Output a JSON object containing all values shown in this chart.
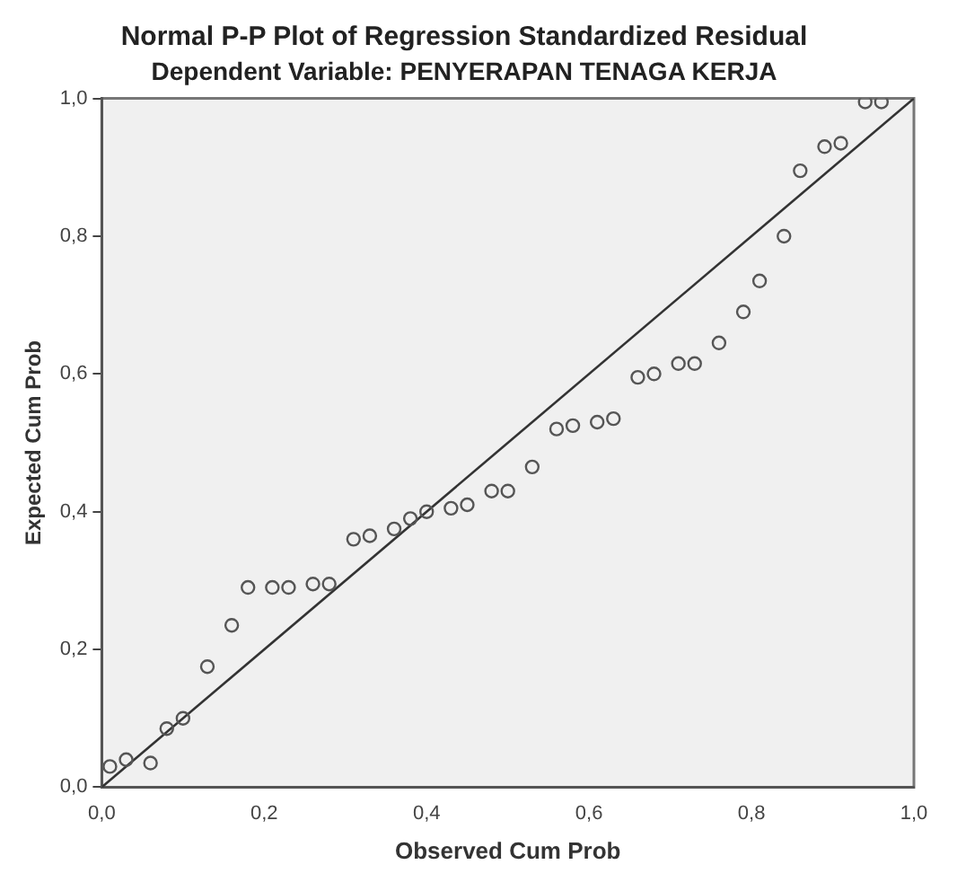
{
  "chart_data": {
    "type": "scatter",
    "title": "Normal P-P Plot of Regression Standardized Residual",
    "subtitle": "Dependent Variable: PENYERAPAN TENAGA KERJA",
    "xlabel": "Observed Cum Prob",
    "ylabel": "Expected Cum Prob",
    "xlim": [
      0,
      1
    ],
    "ylim": [
      0,
      1
    ],
    "xticks": [
      {
        "value": 0,
        "label": "0,0"
      },
      {
        "value": 0.2,
        "label": "0,2"
      },
      {
        "value": 0.4,
        "label": "0,4"
      },
      {
        "value": 0.6,
        "label": "0,6"
      },
      {
        "value": 0.8,
        "label": "0,8"
      },
      {
        "value": 1,
        "label": "1,0"
      }
    ],
    "yticks": [
      {
        "value": 0,
        "label": "0,0"
      },
      {
        "value": 0.2,
        "label": "0,2"
      },
      {
        "value": 0.4,
        "label": "0,4"
      },
      {
        "value": 0.6,
        "label": "0,6"
      },
      {
        "value": 0.8,
        "label": "0,8"
      },
      {
        "value": 1,
        "label": "1,0"
      }
    ],
    "grid": false,
    "legend": false,
    "marker": "circle",
    "series": [
      {
        "color": "#555555",
        "x": [
          0.01,
          0.03,
          0.06,
          0.08,
          0.1,
          0.13,
          0.16,
          0.18,
          0.21,
          0.23,
          0.26,
          0.28,
          0.31,
          0.33,
          0.36,
          0.38,
          0.4,
          0.43,
          0.45,
          0.48,
          0.5,
          0.53,
          0.56,
          0.58,
          0.61,
          0.63,
          0.66,
          0.68,
          0.71,
          0.73,
          0.76,
          0.79,
          0.81,
          0.84,
          0.86,
          0.89,
          0.91,
          0.94,
          0.96
        ],
        "values": [
          0.03,
          0.04,
          0.035,
          0.085,
          0.1,
          0.175,
          0.235,
          0.29,
          0.29,
          0.29,
          0.295,
          0.295,
          0.36,
          0.365,
          0.375,
          0.39,
          0.4,
          0.405,
          0.41,
          0.43,
          0.43,
          0.465,
          0.52,
          0.525,
          0.53,
          0.535,
          0.595,
          0.6,
          0.615,
          0.615,
          0.645,
          0.69,
          0.735,
          0.8,
          0.895,
          0.93,
          0.935,
          0.995,
          0.995
        ]
      },
      {
        "type": "line",
        "color": "#333333",
        "x": [
          0,
          1
        ],
        "values": [
          0,
          1
        ],
        "line_style": "solid",
        "marker": "none"
      }
    ]
  }
}
